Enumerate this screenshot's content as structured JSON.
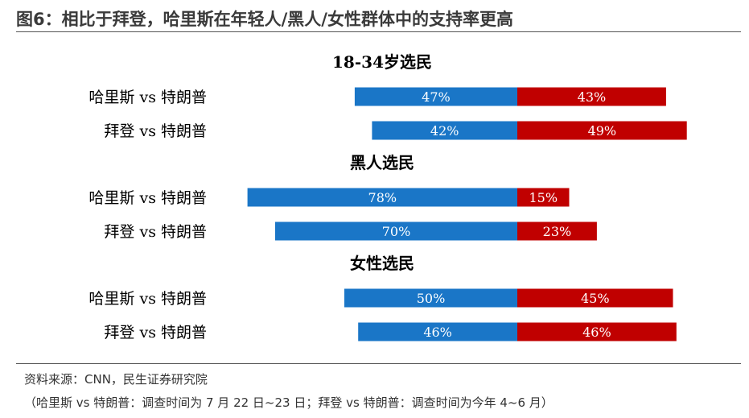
{
  "figure": {
    "title": "图6：相比于拜登，哈里斯在年轻人/黑人/女性群体中的支持率更高",
    "source": "资料来源：CNN，民生证券研究院",
    "note": "（哈里斯 vs 特朗普：调查时间为 7 月 22 日~23 日；拜登 vs 特朗普：调查时间为今年 4~6 月）"
  },
  "colors": {
    "left_bar": "#1a76c7",
    "right_bar": "#c00000",
    "bar_text": "#ffffff",
    "label_text": "#000000"
  },
  "chart_data": {
    "type": "bar",
    "orientation": "horizontal-diverging",
    "value_format": "percent",
    "groups": [
      {
        "title": "18-34岁选民",
        "rows": [
          {
            "label": "哈里斯 vs 特朗普",
            "left": 47,
            "right": 43
          },
          {
            "label": "拜登 vs 特朗普",
            "left": 42,
            "right": 49
          }
        ]
      },
      {
        "title": "黑人选民",
        "rows": [
          {
            "label": "哈里斯 vs 特朗普",
            "left": 78,
            "right": 15
          },
          {
            "label": "拜登 vs 特朗普",
            "left": 70,
            "right": 23
          }
        ]
      },
      {
        "title": "女性选民",
        "rows": [
          {
            "label": "哈里斯 vs 特朗普",
            "left": 50,
            "right": 45
          },
          {
            "label": "拜登 vs 特朗普",
            "left": 46,
            "right": 46
          }
        ]
      }
    ]
  }
}
